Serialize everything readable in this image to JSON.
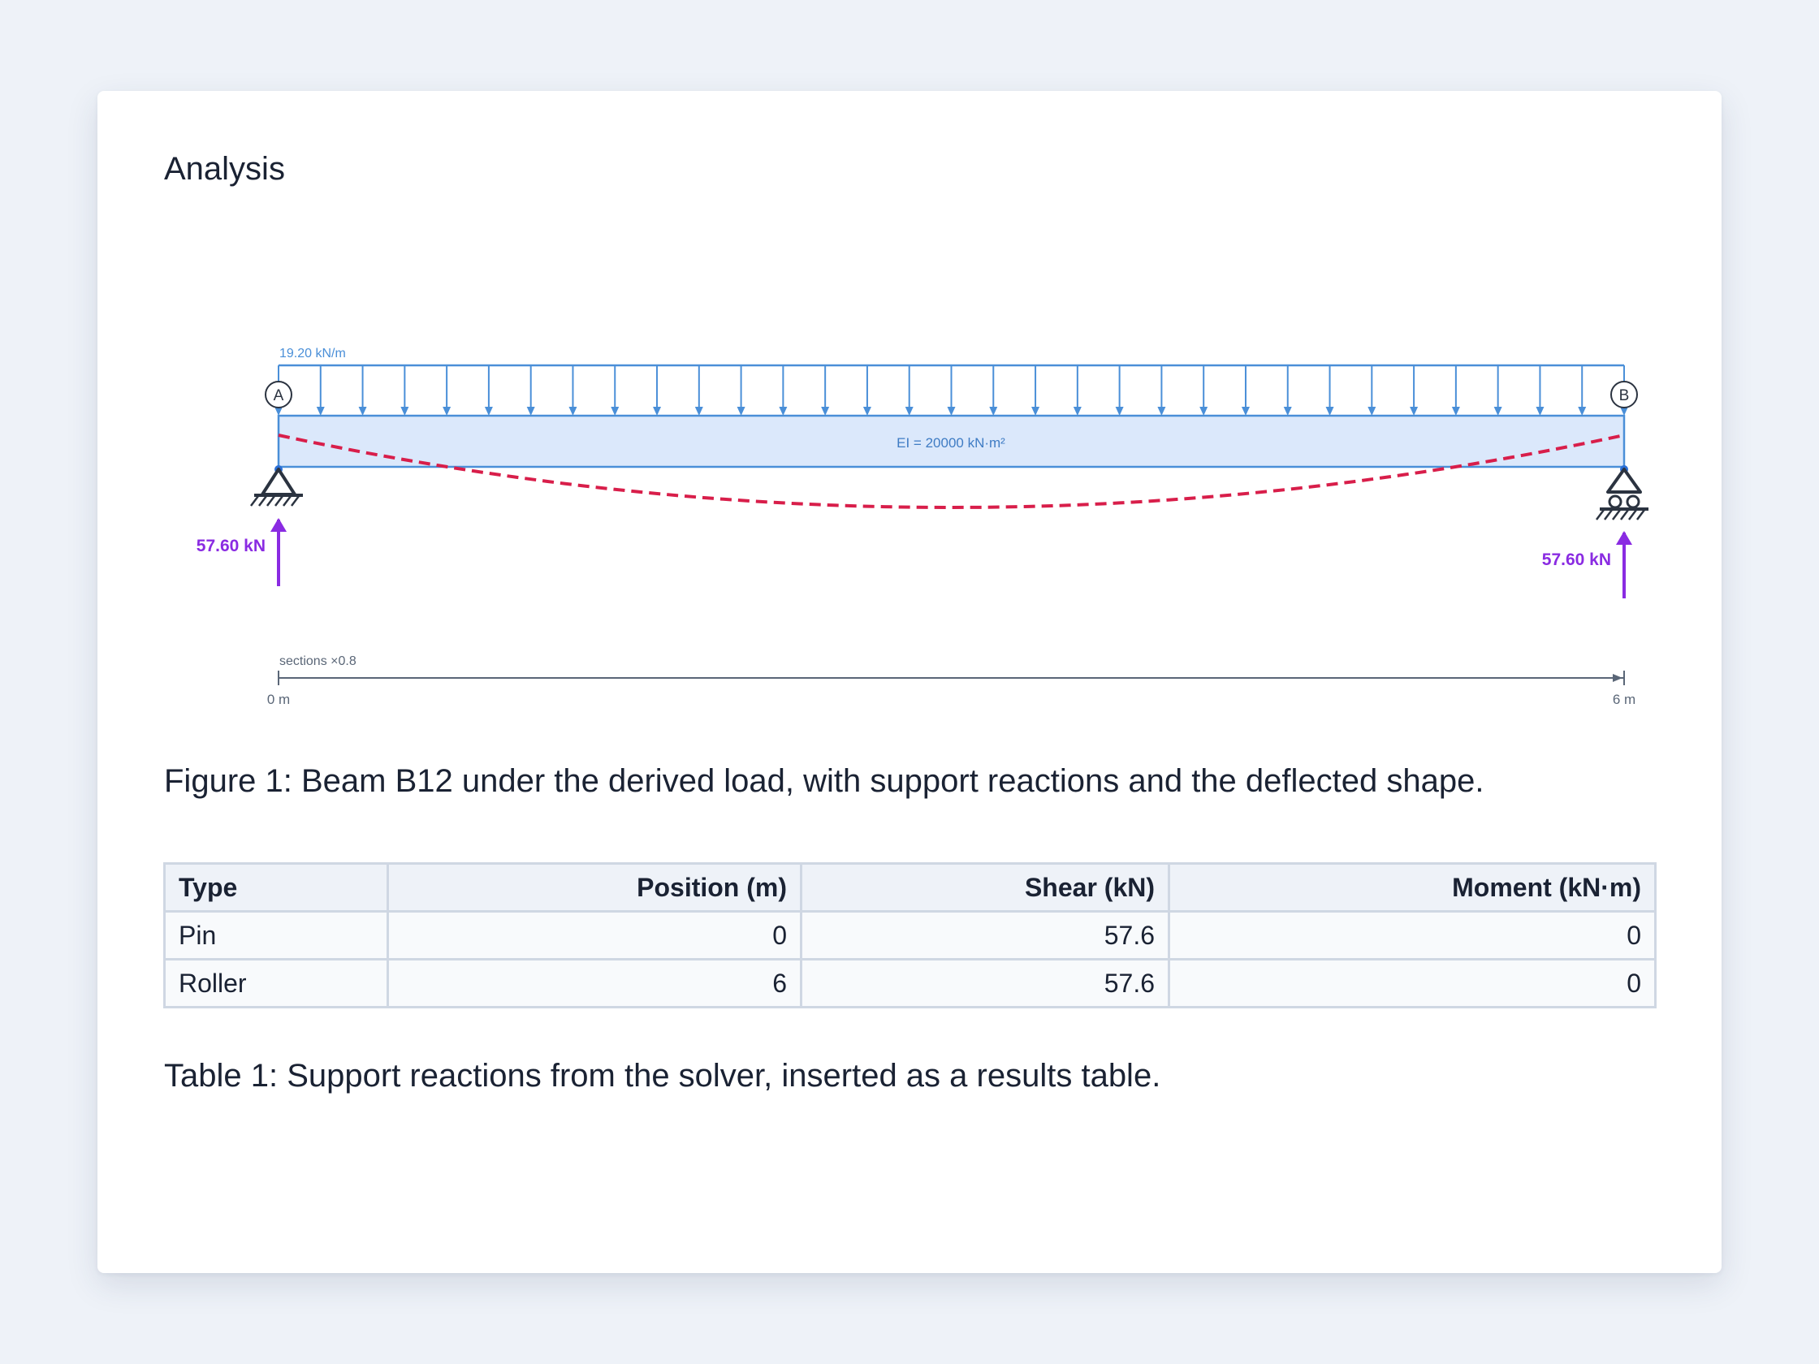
{
  "page": {
    "title": "Analysis",
    "figure_caption": "Figure 1: Beam B12 under the derived load, with support reactions and the deflected shape.",
    "table_caption": "Table 1: Support reactions from the solver, inserted as a results table."
  },
  "diagram": {
    "load_label": "19.20 kN/m",
    "ei_label": "EI = 20000 kN·m²",
    "node_a": "A",
    "node_b": "B",
    "reaction_left": "57.60 kN",
    "reaction_right": "57.60 kN",
    "scale_label": "sections ×0.8",
    "start_label": "0 m",
    "end_label": "6 m",
    "colors": {
      "load": "#4a8fd8",
      "beam_fill": "#dbe8fb",
      "deflection": "#d81e4a",
      "reaction": "#8a2be2",
      "support": "#2b3340",
      "dimension": "#5a6677"
    }
  },
  "table": {
    "headers": [
      "Type",
      "Position (m)",
      "Shear (kN)",
      "Moment (kN·m)"
    ],
    "rows": [
      [
        "Pin",
        "0",
        "57.6",
        "0"
      ],
      [
        "Roller",
        "6",
        "57.6",
        "0"
      ]
    ]
  }
}
